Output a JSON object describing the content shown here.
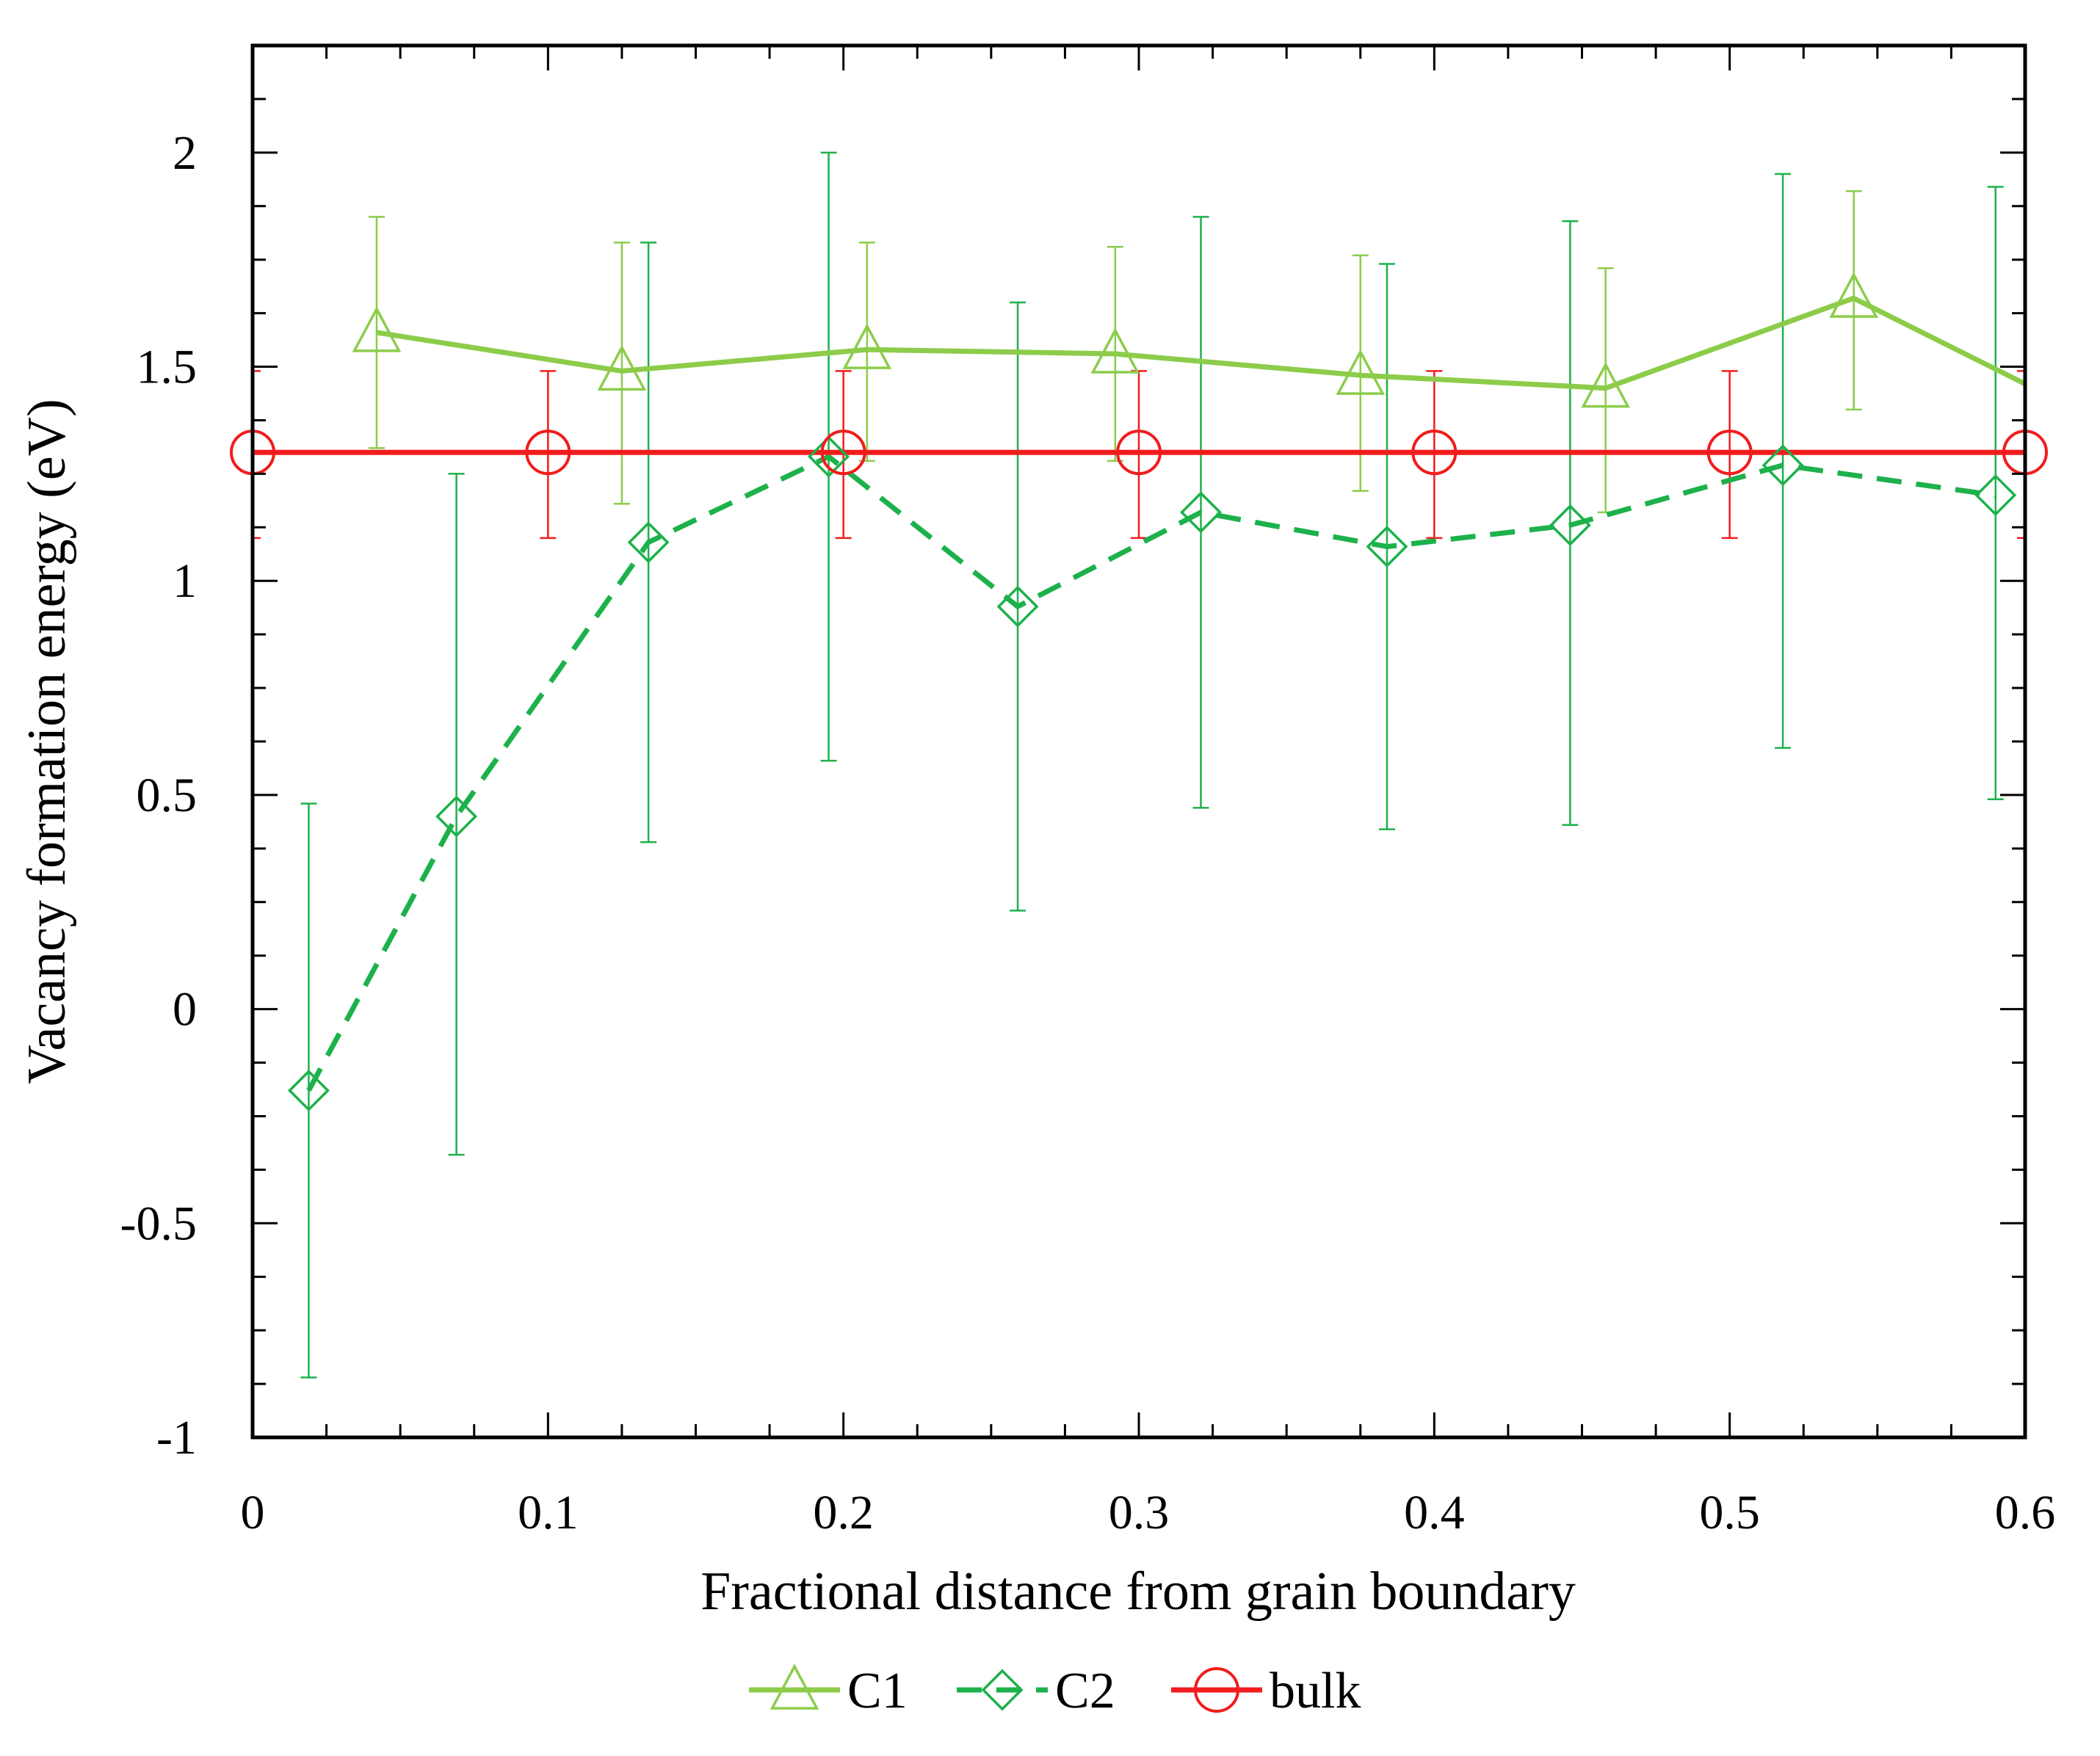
{
  "chart_data": {
    "type": "line",
    "title": "",
    "xlabel": "Fractional distance from grain boundary",
    "ylabel": "Vacancy formation energy (eV)",
    "xlim": [
      0,
      0.6
    ],
    "ylim": [
      -1,
      2.25
    ],
    "x_ticks": [
      "0",
      "0.1",
      "0.2",
      "0.3",
      "0.4",
      "0.5",
      "0.6"
    ],
    "y_ticks": [
      "-1",
      "-0.5",
      "0",
      "0.5",
      "1",
      "1.5",
      "2"
    ],
    "x_tick_values": [
      0,
      0.1,
      0.2,
      0.3,
      0.4,
      0.5,
      0.6
    ],
    "y_tick_values": [
      -1,
      -0.5,
      0,
      0.5,
      1,
      1.5,
      2
    ],
    "grid": false,
    "legend_position": "bottom-center",
    "series": [
      {
        "name": "C1",
        "color": "#8ccc4a",
        "line_style": "solid",
        "marker": "triangle",
        "x": [
          0.042,
          0.125,
          0.208,
          0.292,
          0.375,
          0.458,
          0.542,
          0.6
        ],
        "y": [
          1.58,
          1.49,
          1.54,
          1.53,
          1.48,
          1.45,
          1.66,
          1.46
        ],
        "err_low": [
          1.31,
          1.18,
          1.28,
          1.28,
          1.21,
          1.16,
          1.4,
          null
        ],
        "err_high": [
          1.85,
          1.79,
          1.79,
          1.78,
          1.76,
          1.73,
          1.91,
          null
        ]
      },
      {
        "name": "C2",
        "color": "#1db14b",
        "line_style": "dashed",
        "marker": "diamond",
        "x": [
          0.019,
          0.069,
          0.134,
          0.195,
          0.259,
          0.321,
          0.384,
          0.446,
          0.518,
          0.59
        ],
        "y": [
          -0.19,
          0.45,
          1.09,
          1.29,
          0.94,
          1.16,
          1.08,
          1.13,
          1.27,
          1.2
        ],
        "err_low": [
          -0.86,
          -0.34,
          0.39,
          0.58,
          0.23,
          0.47,
          0.42,
          0.43,
          0.61,
          0.49
        ],
        "err_high": [
          0.48,
          1.25,
          1.79,
          2.0,
          1.65,
          1.85,
          1.74,
          1.84,
          1.95,
          1.92
        ]
      },
      {
        "name": "bulk",
        "color": "#f21c1c",
        "line_style": "solid",
        "marker": "circle",
        "x": [
          0,
          0.1,
          0.2,
          0.3,
          0.4,
          0.5,
          0.6
        ],
        "y": [
          1.3,
          1.3,
          1.3,
          1.3,
          1.3,
          1.3,
          1.3
        ],
        "err_low": [
          1.1,
          1.1,
          1.1,
          1.1,
          1.1,
          1.1,
          1.1
        ],
        "err_high": [
          1.49,
          1.49,
          1.49,
          1.49,
          1.49,
          1.49,
          1.49
        ]
      }
    ]
  }
}
